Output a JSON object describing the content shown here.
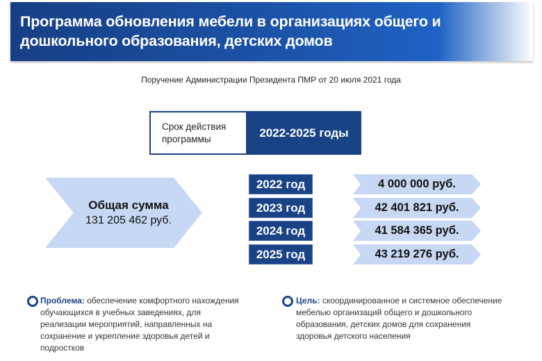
{
  "header": {
    "title": "Программа обновления мебели в организациях общего и дошкольного образования, детских домов"
  },
  "subtitle": "Поручение Администрации Президента ПМР от 20 июля 2021 года",
  "term": {
    "label": "Срок действия программы",
    "value": "2022-2025 годы"
  },
  "total": {
    "label": "Общая сумма",
    "value": "131 205 462 руб."
  },
  "years": [
    {
      "year": "2022 год",
      "amount": "4 000 000 руб."
    },
    {
      "year": "2023 год",
      "amount": "42 401 821 руб."
    },
    {
      "year": "2024 год",
      "amount": "41 584 365 руб."
    },
    {
      "year": "2025 год",
      "amount": "43 219 276 руб."
    }
  ],
  "problem": {
    "label": "Проблема:",
    "text": "обеспечение комфортного нахождения обучающихся в учебных заведениях, для реализации мероприятий, направленных на сохранение и укрепление здоровья детей и подростков"
  },
  "goal": {
    "label": "Цель:",
    "text": "скоординированное и системное обеспечение мебелью организаций общего и дошкольного образования, детских домов для сохранения здоровья детского населения"
  },
  "colors": {
    "primary": "#1a4386",
    "light": "#c6d8f3"
  }
}
